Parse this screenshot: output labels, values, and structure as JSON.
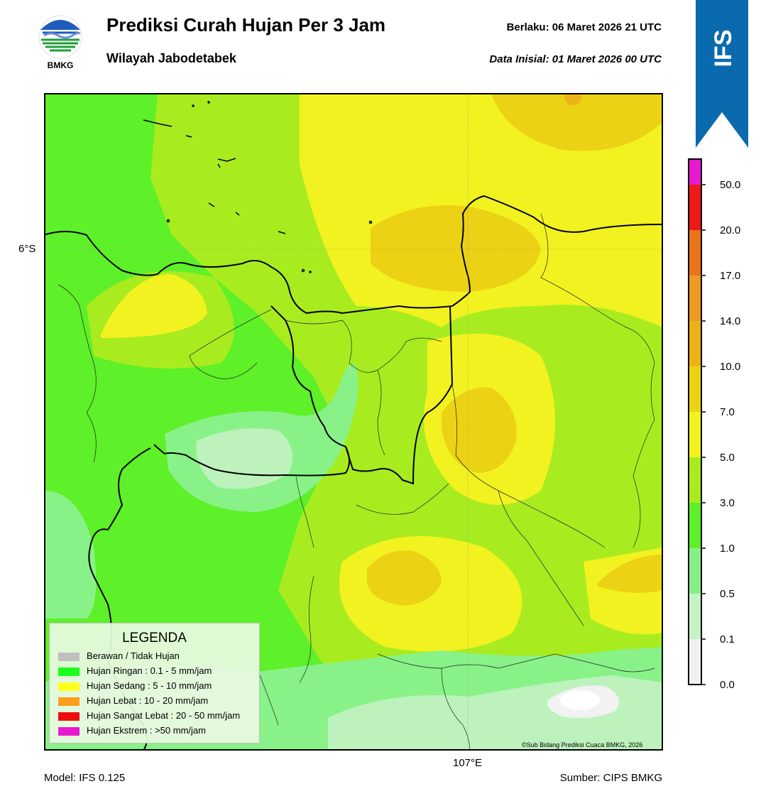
{
  "header": {
    "title": "Prediksi Curah Hujan Per 3 Jam",
    "subtitle": "Wilayah Jabodetabek",
    "valid_label": "Berlaku:  06 Maret 2026 21 UTC",
    "init_label": "Data Inisial:  01 Maret 2026 00 UTC",
    "logo_text": "BMKG"
  },
  "banner": {
    "text": "IFS",
    "color": "#0a6aae"
  },
  "map": {
    "lat_label": "6°S",
    "lon_label": "107°E",
    "copyright": "©Sub Bidang Prediksi Cuaca BMKG, 2026",
    "colors": {
      "very_light": "#f2f2f2",
      "pale_green": "#bdf2bd",
      "light_green": "#88f288",
      "green": "#5ef028",
      "yellow_green": "#a8ec20",
      "yellow": "#f2f220",
      "gold": "#ecd214",
      "orange_gold": "#ecb218"
    }
  },
  "legend": {
    "title": "LEGENDA",
    "items": [
      {
        "label": "Berawan / Tidak Hujan",
        "color": "#bfbfbf"
      },
      {
        "label": "Hujan Ringan : 0.1 - 5 mm/jam",
        "color": "#1cff1c"
      },
      {
        "label": "Hujan Sedang : 5 - 10 mm/jam",
        "color": "#ffff1c"
      },
      {
        "label": "Hujan Lebat : 10 - 20 mm/jam",
        "color": "#ff9d1c"
      },
      {
        "label": "Hujan Sangat Lebat : 20 - 50 mm/jam",
        "color": "#ee0d0d"
      },
      {
        "label": "Hujan Ekstrem : >50 mm/jam",
        "color": "#e81ad0"
      }
    ]
  },
  "colorbar": {
    "ticks": [
      "0.0",
      "0.1",
      "0.5",
      "1.0",
      "3.0",
      "5.0",
      "7.0",
      "10.0",
      "14.0",
      "17.0",
      "20.0",
      "50.0"
    ],
    "colors": [
      "#f0f0f0",
      "#c4f4c4",
      "#86f086",
      "#5ef028",
      "#a8ec20",
      "#f2f220",
      "#ecd214",
      "#ecb218",
      "#ec9a20",
      "#e8741c",
      "#ee1a1a",
      "#e81ad0"
    ]
  },
  "footer": {
    "model": "Model: IFS 0.125",
    "source": "Sumber: CIPS BMKG"
  }
}
